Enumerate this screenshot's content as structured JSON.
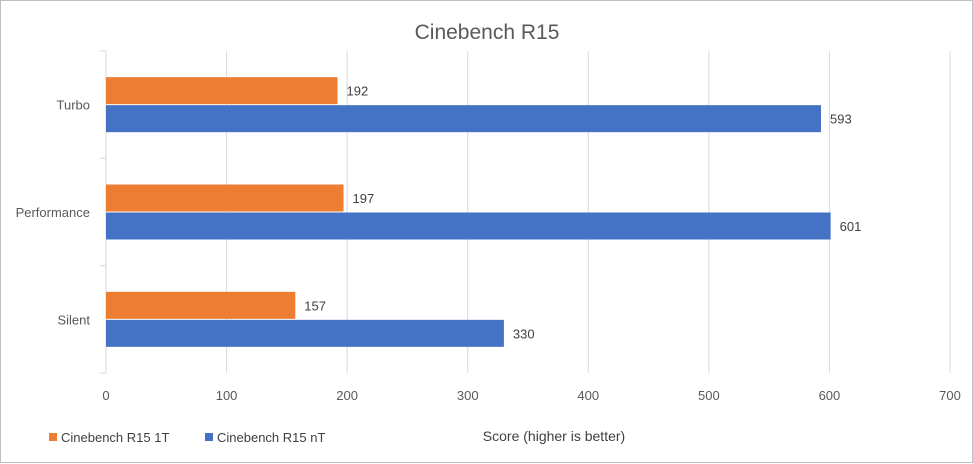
{
  "chart_data": {
    "type": "bar",
    "orientation": "horizontal",
    "title": "Cinebench R15",
    "xlabel": "Score (higher is better)",
    "ylabel": "",
    "categories": [
      "Turbo",
      "Performance",
      "Silent"
    ],
    "series": [
      {
        "name": "Cinebench R15 1T",
        "color": "#ed7d31",
        "values": [
          192,
          197,
          157
        ]
      },
      {
        "name": "Cinebench R15 nT",
        "color": "#4472c4",
        "values": [
          593,
          601,
          330
        ]
      }
    ],
    "xlim": [
      0,
      700
    ],
    "xticks": [
      "0",
      "100",
      "200",
      "300",
      "400",
      "500",
      "600",
      "700"
    ],
    "grid": true,
    "legend_position": "bottom-left",
    "data_labels": true
  }
}
